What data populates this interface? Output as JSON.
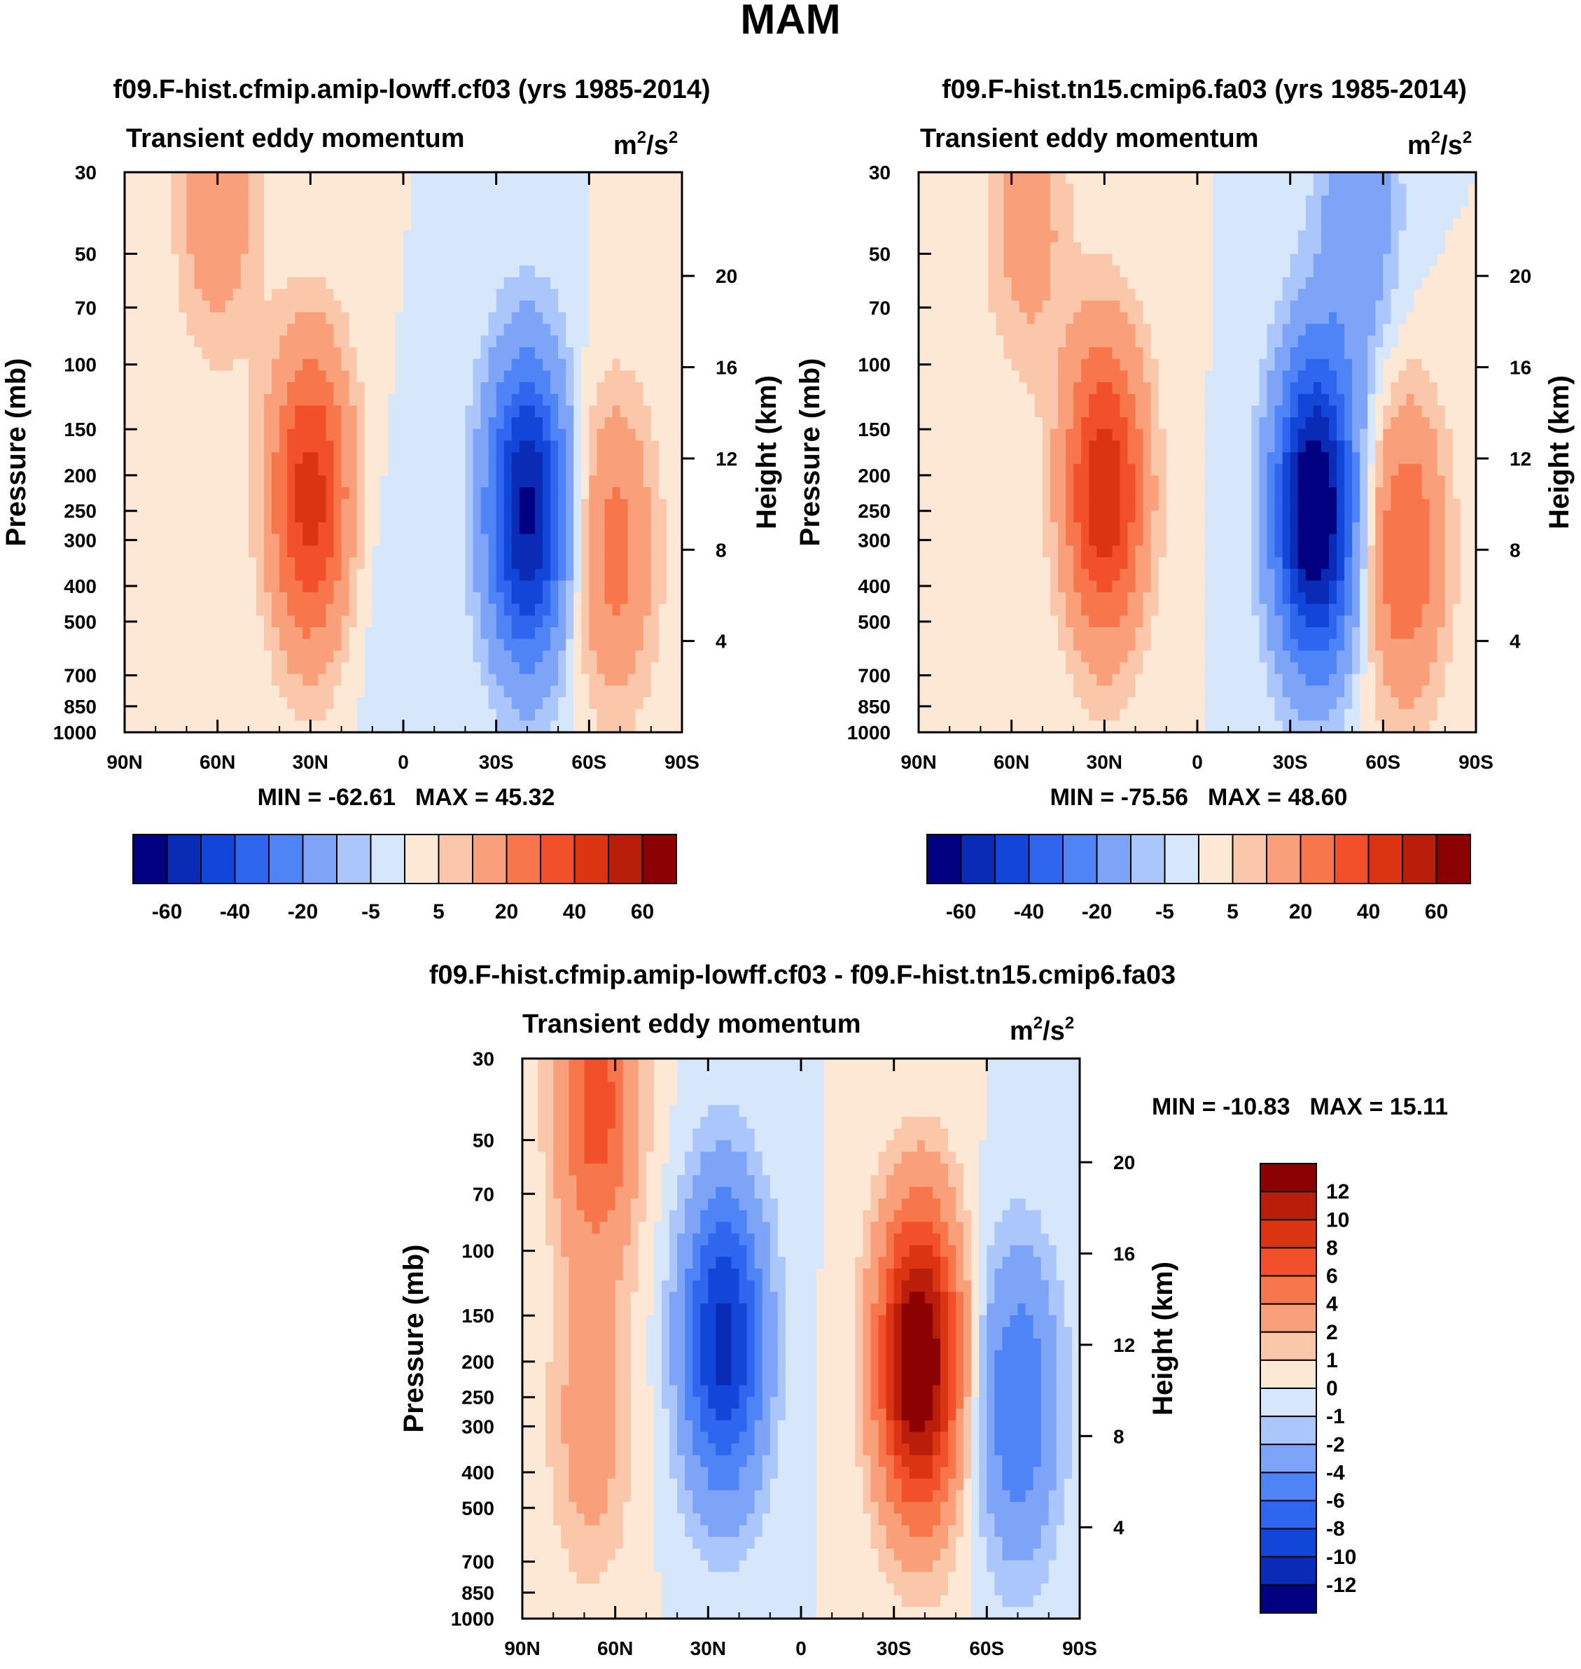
{
  "figure_title": "MAM",
  "chart_data": [
    {
      "type": "heatmap",
      "title": "f09.F-hist.cfmip.amip-lowff.cf03 (yrs 1985-2014)",
      "subtitle": "Transient eddy momentum",
      "units_base": "m",
      "units_sep": "/s",
      "units_exp": "2",
      "ylabel": "Pressure (mb)",
      "ylabel_right": "Height (km)",
      "x_ticks": [
        "90N",
        "60N",
        "30N",
        "0",
        "30S",
        "60S",
        "90S"
      ],
      "y_ticks": [
        "30",
        "50",
        "70",
        "100",
        "150",
        "200",
        "250",
        "300",
        "400",
        "500",
        "700",
        "850",
        "1000"
      ],
      "y_ticks_right": [
        "20",
        "16",
        "12",
        "8",
        "4"
      ],
      "min_label": "MIN = -62.61",
      "max_label": "MAX =  45.32",
      "colorbar": {
        "levels": [
          -70,
          -60,
          -50,
          -40,
          -30,
          -20,
          -10,
          -5,
          0,
          5,
          10,
          20,
          30,
          40,
          50,
          60,
          70
        ],
        "labels": [
          "-60",
          "-40",
          "-20",
          "-5",
          "5",
          "20",
          "40",
          "60"
        ]
      },
      "features": [
        {
          "lat": 30,
          "p": 230,
          "value": 45.3
        },
        {
          "lat": 60,
          "p": 35,
          "value": 18
        },
        {
          "lat": -40,
          "p": 250,
          "value": -62.6
        },
        {
          "lat": -68,
          "p": 320,
          "value": 24
        },
        {
          "lat": 10,
          "p": 400,
          "value": -3
        }
      ]
    },
    {
      "type": "heatmap",
      "title": "f09.F-hist.tn15.cmip6.fa03 (yrs 1985-2014)",
      "subtitle": "Transient eddy momentum",
      "units_base": "m",
      "units_sep": "/s",
      "units_exp": "2",
      "ylabel": "Pressure (mb)",
      "ylabel_right": "Height (km)",
      "x_ticks": [
        "90N",
        "60N",
        "30N",
        "0",
        "30S",
        "60S",
        "90S"
      ],
      "y_ticks": [
        "30",
        "50",
        "70",
        "100",
        "150",
        "200",
        "250",
        "300",
        "400",
        "500",
        "700",
        "850",
        "1000"
      ],
      "y_ticks_right": [
        "20",
        "16",
        "12",
        "8",
        "4"
      ],
      "min_label": "MIN = -75.56",
      "max_label": "MAX =  48.60",
      "colorbar": {
        "levels": [
          -70,
          -60,
          -50,
          -40,
          -30,
          -20,
          -10,
          -5,
          0,
          5,
          10,
          20,
          30,
          40,
          50,
          60,
          70
        ],
        "labels": [
          "-60",
          "-40",
          "-20",
          "-5",
          "5",
          "20",
          "40",
          "60"
        ]
      },
      "features": [
        {
          "lat": 30,
          "p": 220,
          "value": 48.6
        },
        {
          "lat": 55,
          "p": 40,
          "value": 15
        },
        {
          "lat": -38,
          "p": 250,
          "value": -75.6
        },
        {
          "lat": -67,
          "p": 320,
          "value": 30
        },
        {
          "lat": -52,
          "p": 40,
          "value": -18
        }
      ]
    },
    {
      "type": "heatmap",
      "title": "f09.F-hist.cfmip.amip-lowff.cf03 - f09.F-hist.tn15.cmip6.fa03",
      "subtitle": "Transient eddy momentum",
      "units_base": "m",
      "units_sep": "/s",
      "units_exp": "2",
      "ylabel": "Pressure (mb)",
      "ylabel_right": "Height (km)",
      "x_ticks": [
        "90N",
        "60N",
        "30N",
        "0",
        "30S",
        "60S",
        "90S"
      ],
      "y_ticks": [
        "30",
        "50",
        "70",
        "100",
        "150",
        "200",
        "250",
        "300",
        "400",
        "500",
        "700",
        "850",
        "1000"
      ],
      "y_ticks_right": [
        "20",
        "16",
        "12",
        "8",
        "4"
      ],
      "min_label": "MIN = -10.83",
      "max_label": "MAX =  15.11",
      "colorbar": {
        "levels": [
          14,
          12,
          10,
          8,
          6,
          4,
          2,
          1,
          0,
          -1,
          -2,
          -4,
          -6,
          -8,
          -10,
          -12,
          -14
        ],
        "labels": [
          "12",
          "10",
          "8",
          "6",
          "4",
          "2",
          "1",
          "0",
          "-1",
          "-2",
          "-4",
          "-6",
          "-8",
          "-10",
          "-12"
        ]
      },
      "features": [
        {
          "lat": 66,
          "p": 40,
          "value": 7
        },
        {
          "lat": 25,
          "p": 175,
          "value": -10.8
        },
        {
          "lat": -38,
          "p": 200,
          "value": 15.1
        },
        {
          "lat": -70,
          "p": 260,
          "value": -6
        },
        {
          "lat": 68,
          "p": 300,
          "value": 3
        }
      ]
    }
  ]
}
